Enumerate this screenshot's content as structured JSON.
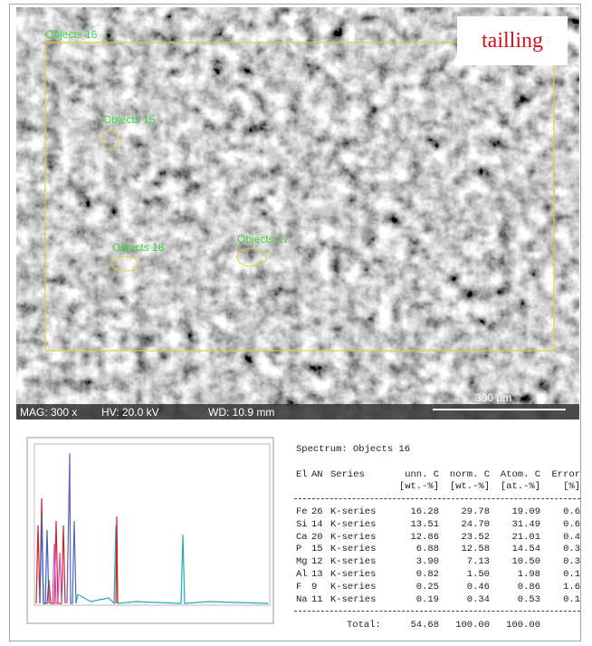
{
  "image": {
    "objects": [
      "Objects 16",
      "Objects 15",
      "Objects 18",
      "Objects 17"
    ],
    "label": "tailling",
    "info": {
      "mag": "MAG: 300 x",
      "hv": "HV: 20.0 kV",
      "wd": "WD: 10.9 mm"
    },
    "scale_bar": "300 µm"
  },
  "spectrum_table": {
    "title": "Spectrum: Objects 16",
    "header": [
      "El",
      "AN",
      "Series",
      "unn. C",
      "norm. C",
      "Atom. C",
      "Error"
    ],
    "units": [
      "[wt.-%]",
      "[wt.-%]",
      "[at.-%]",
      "[%]"
    ],
    "rows": [
      [
        "Fe",
        "26",
        "K-series",
        "16.28",
        "29.78",
        "19.09",
        "0.6"
      ],
      [
        "Si",
        "14",
        "K-series",
        "13.51",
        "24.70",
        "31.49",
        "0.6"
      ],
      [
        "Ca",
        "20",
        "K-series",
        "12.86",
        "23.52",
        "21.01",
        "0.4"
      ],
      [
        "P",
        "15",
        "K-series",
        "6.88",
        "12.58",
        "14.54",
        "0.3"
      ],
      [
        "Mg",
        "12",
        "K-series",
        "3.90",
        "7.13",
        "10.50",
        "0.3"
      ],
      [
        "Al",
        "13",
        "K-series",
        "0.82",
        "1.50",
        "1.98",
        "0.1"
      ],
      [
        "F",
        "9",
        "K-series",
        "0.25",
        "0.46",
        "0.86",
        "1.6"
      ],
      [
        "Na",
        "11",
        "K-series",
        "0.19",
        "0.34",
        "0.53",
        "0.1"
      ]
    ],
    "total": [
      "Total:",
      "54.68",
      "100.00",
      "100.00"
    ]
  }
}
